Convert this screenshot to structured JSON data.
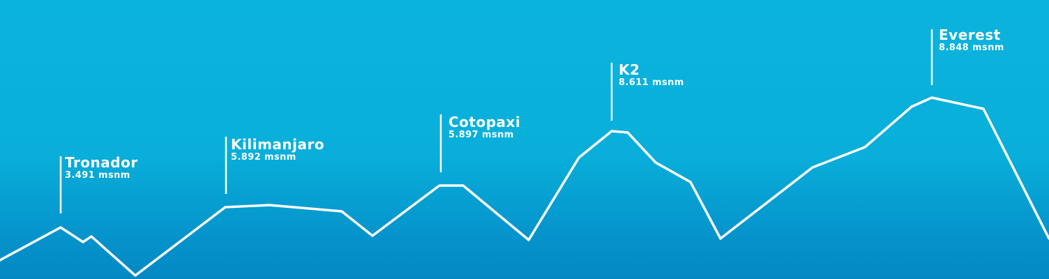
{
  "colors": {
    "background_top": "#0AB3DD",
    "background_bottom": "#0488C3",
    "line": "#FFFFFF",
    "text": "#FFFFFF"
  },
  "peaks": [
    {
      "name": "Tronador",
      "elevation": "3.491 msnm"
    },
    {
      "name": "Kilimanjaro",
      "elevation": "5.892 msnm"
    },
    {
      "name": "Cotopaxi",
      "elevation": "5.897 msnm"
    },
    {
      "name": "K2",
      "elevation": "8.611 msnm"
    },
    {
      "name": "Everest",
      "elevation": "8.848 msnm"
    }
  ]
}
